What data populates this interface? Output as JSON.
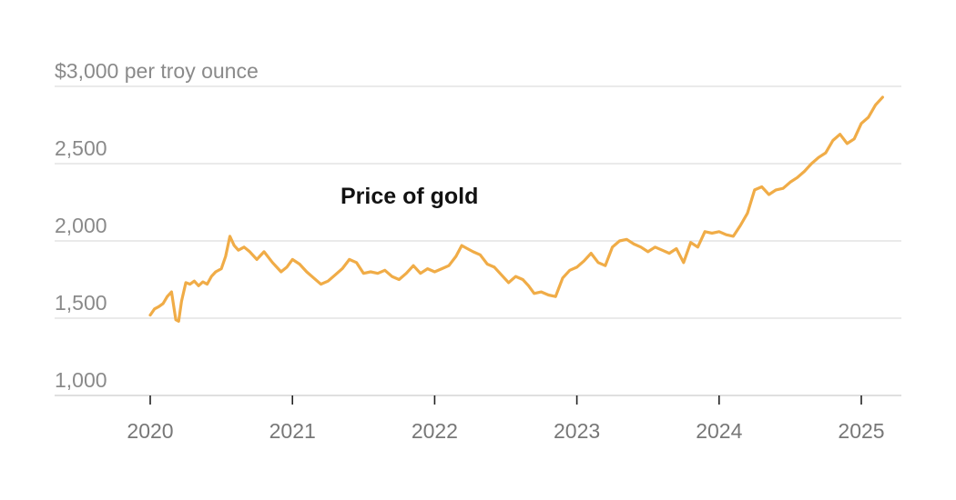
{
  "chart_data": {
    "type": "line",
    "title": "",
    "xlabel": "",
    "ylabel": "",
    "annotation": "Price of gold",
    "y_ticks": [
      {
        "value": 3000,
        "label": "$3,000 per troy ounce"
      },
      {
        "value": 2500,
        "label": "2,500"
      },
      {
        "value": 2000,
        "label": "2,000"
      },
      {
        "value": 1500,
        "label": "1,500"
      },
      {
        "value": 1000,
        "label": "1,000"
      }
    ],
    "x_ticks": [
      {
        "value": 2020,
        "label": "2020"
      },
      {
        "value": 2021,
        "label": "2021"
      },
      {
        "value": 2022,
        "label": "2022"
      },
      {
        "value": 2023,
        "label": "2023"
      },
      {
        "value": 2024,
        "label": "2024"
      },
      {
        "value": 2025,
        "label": "2025"
      }
    ],
    "xlim": [
      2019.9,
      2025.27
    ],
    "ylim": [
      1000,
      3000
    ],
    "grid": "horizontal",
    "series_color": "#f0ac47",
    "series": [
      {
        "x": [
          2020.0,
          2020.03,
          2020.06,
          2020.09,
          2020.12,
          2020.15,
          2020.18,
          2020.2,
          2020.22,
          2020.25,
          2020.28,
          2020.31,
          2020.34,
          2020.37,
          2020.4,
          2020.43,
          2020.46,
          2020.5,
          2020.53,
          2020.56,
          2020.59,
          2020.62,
          2020.66,
          2020.7,
          2020.75,
          2020.8,
          2020.86,
          2020.92,
          2020.96,
          2021.0,
          2021.05,
          2021.1,
          2021.15,
          2021.2,
          2021.25,
          2021.3,
          2021.35,
          2021.4,
          2021.45,
          2021.5,
          2021.55,
          2021.6,
          2021.65,
          2021.7,
          2021.75,
          2021.8,
          2021.85,
          2021.9,
          2021.95,
          2022.0,
          2022.05,
          2022.1,
          2022.15,
          2022.19,
          2022.23,
          2022.27,
          2022.32,
          2022.37,
          2022.42,
          2022.47,
          2022.52,
          2022.57,
          2022.62,
          2022.66,
          2022.7,
          2022.75,
          2022.8,
          2022.85,
          2022.9,
          2022.95,
          2023.0,
          2023.05,
          2023.1,
          2023.15,
          2023.2,
          2023.25,
          2023.3,
          2023.35,
          2023.4,
          2023.45,
          2023.5,
          2023.55,
          2023.6,
          2023.65,
          2023.7,
          2023.75,
          2023.8,
          2023.85,
          2023.9,
          2023.95,
          2024.0,
          2024.05,
          2024.1,
          2024.15,
          2024.2,
          2024.25,
          2024.3,
          2024.35,
          2024.4,
          2024.45,
          2024.5,
          2024.55,
          2024.6,
          2024.65,
          2024.7,
          2024.75,
          2024.8,
          2024.85,
          2024.9,
          2024.95,
          2025.0,
          2025.05,
          2025.1,
          2025.15
        ],
        "values": [
          1520,
          1560,
          1575,
          1595,
          1640,
          1670,
          1490,
          1480,
          1610,
          1730,
          1720,
          1740,
          1710,
          1735,
          1720,
          1770,
          1800,
          1820,
          1900,
          2030,
          1970,
          1940,
          1960,
          1930,
          1880,
          1930,
          1860,
          1800,
          1830,
          1880,
          1850,
          1800,
          1760,
          1720,
          1740,
          1780,
          1820,
          1880,
          1860,
          1790,
          1800,
          1790,
          1810,
          1770,
          1750,
          1790,
          1840,
          1790,
          1820,
          1800,
          1820,
          1840,
          1900,
          1970,
          1950,
          1930,
          1910,
          1850,
          1830,
          1780,
          1730,
          1770,
          1750,
          1710,
          1660,
          1670,
          1650,
          1640,
          1760,
          1810,
          1830,
          1870,
          1920,
          1860,
          1840,
          1960,
          2000,
          2010,
          1980,
          1960,
          1930,
          1960,
          1940,
          1920,
          1950,
          1860,
          1990,
          1960,
          2060,
          2050,
          2060,
          2040,
          2030,
          2100,
          2180,
          2330,
          2350,
          2300,
          2330,
          2340,
          2380,
          2410,
          2450,
          2500,
          2540,
          2570,
          2650,
          2690,
          2630,
          2660,
          2760,
          2800,
          2880,
          2930
        ]
      }
    ]
  }
}
